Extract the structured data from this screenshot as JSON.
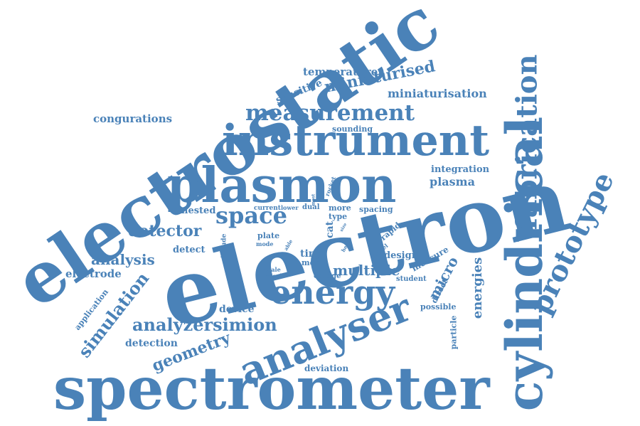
{
  "accent_color": "#4a82b8",
  "words": {
    "electron": "electron",
    "electrostatic": "electrostatic",
    "spectrometer": "spectrometer",
    "cylindrical": "cylindrical",
    "plasmon": "plasmon",
    "instrument": "instrument",
    "analyser": "analyser",
    "energy": "energy",
    "fabrication": "fabrication",
    "prototype": "prototype",
    "measurement": "measurement",
    "space": "space",
    "simulation": "simulation",
    "analyzersimion": "analyzersimion",
    "geometry": "geometry",
    "miniaturised": "miniaturised",
    "detector": "detector",
    "multiple": "multiple",
    "analysis": "analysis",
    "plasma": "plasma",
    "micro": "micro",
    "energies": "energies",
    "miniaturisation": "miniaturisation",
    "temperature": "temperature",
    "congurations": "congurations",
    "sensitive": "sensitive",
    "integration": "integration",
    "sounding": "sounding",
    "electrode": "electrode",
    "detect": "detect",
    "nested": "nested",
    "device": "device",
    "detection": "detection",
    "deviation": "deviation",
    "application": "application",
    "tiny": "tiny",
    "mem": "mem",
    "cat": "cat",
    "type": "type",
    "more": "more",
    "dual": "dual",
    "lower": "lower",
    "current": "current",
    "spacing": "spacing",
    "plate": "plate",
    "mode": "mode",
    "altitude": "altitude",
    "scale": "scale",
    "result": "result",
    "charge": "charge",
    "rocket": "rocket",
    "rapid": "rapid",
    "model": "model",
    "design": "design",
    "measure": "measure",
    "student": "student",
    "direct": "direct",
    "possible": "possible",
    "particle": "particle",
    "head": "head",
    "size": "size",
    "able": "able",
    "most": "most"
  }
}
